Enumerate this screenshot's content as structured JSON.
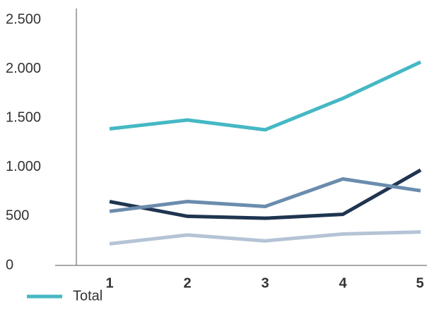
{
  "chart_data": {
    "type": "line",
    "categories": [
      "1",
      "2",
      "3",
      "4",
      "5"
    ],
    "series": [
      {
        "name": "Total",
        "color": "#45b8c4",
        "values": [
          1390,
          1480,
          1380,
          1700,
          2070
        ]
      },
      {
        "color": "#6b8cad",
        "values": [
          550,
          650,
          600,
          880,
          760
        ]
      },
      {
        "color": "#1f3550",
        "values": [
          650,
          500,
          480,
          520,
          970
        ]
      },
      {
        "color": "#b5c3d6",
        "values": [
          220,
          310,
          250,
          320,
          340
        ]
      }
    ],
    "ylim": [
      0,
      2500
    ],
    "yticks": [
      0,
      500,
      {
        "value": 1000,
        "label": "1.000"
      },
      {
        "value": 1500,
        "label": "1.500"
      },
      {
        "value": 2000,
        "label": "2.000"
      },
      {
        "value": 2500,
        "label": "2.500"
      }
    ],
    "grid": false
  }
}
